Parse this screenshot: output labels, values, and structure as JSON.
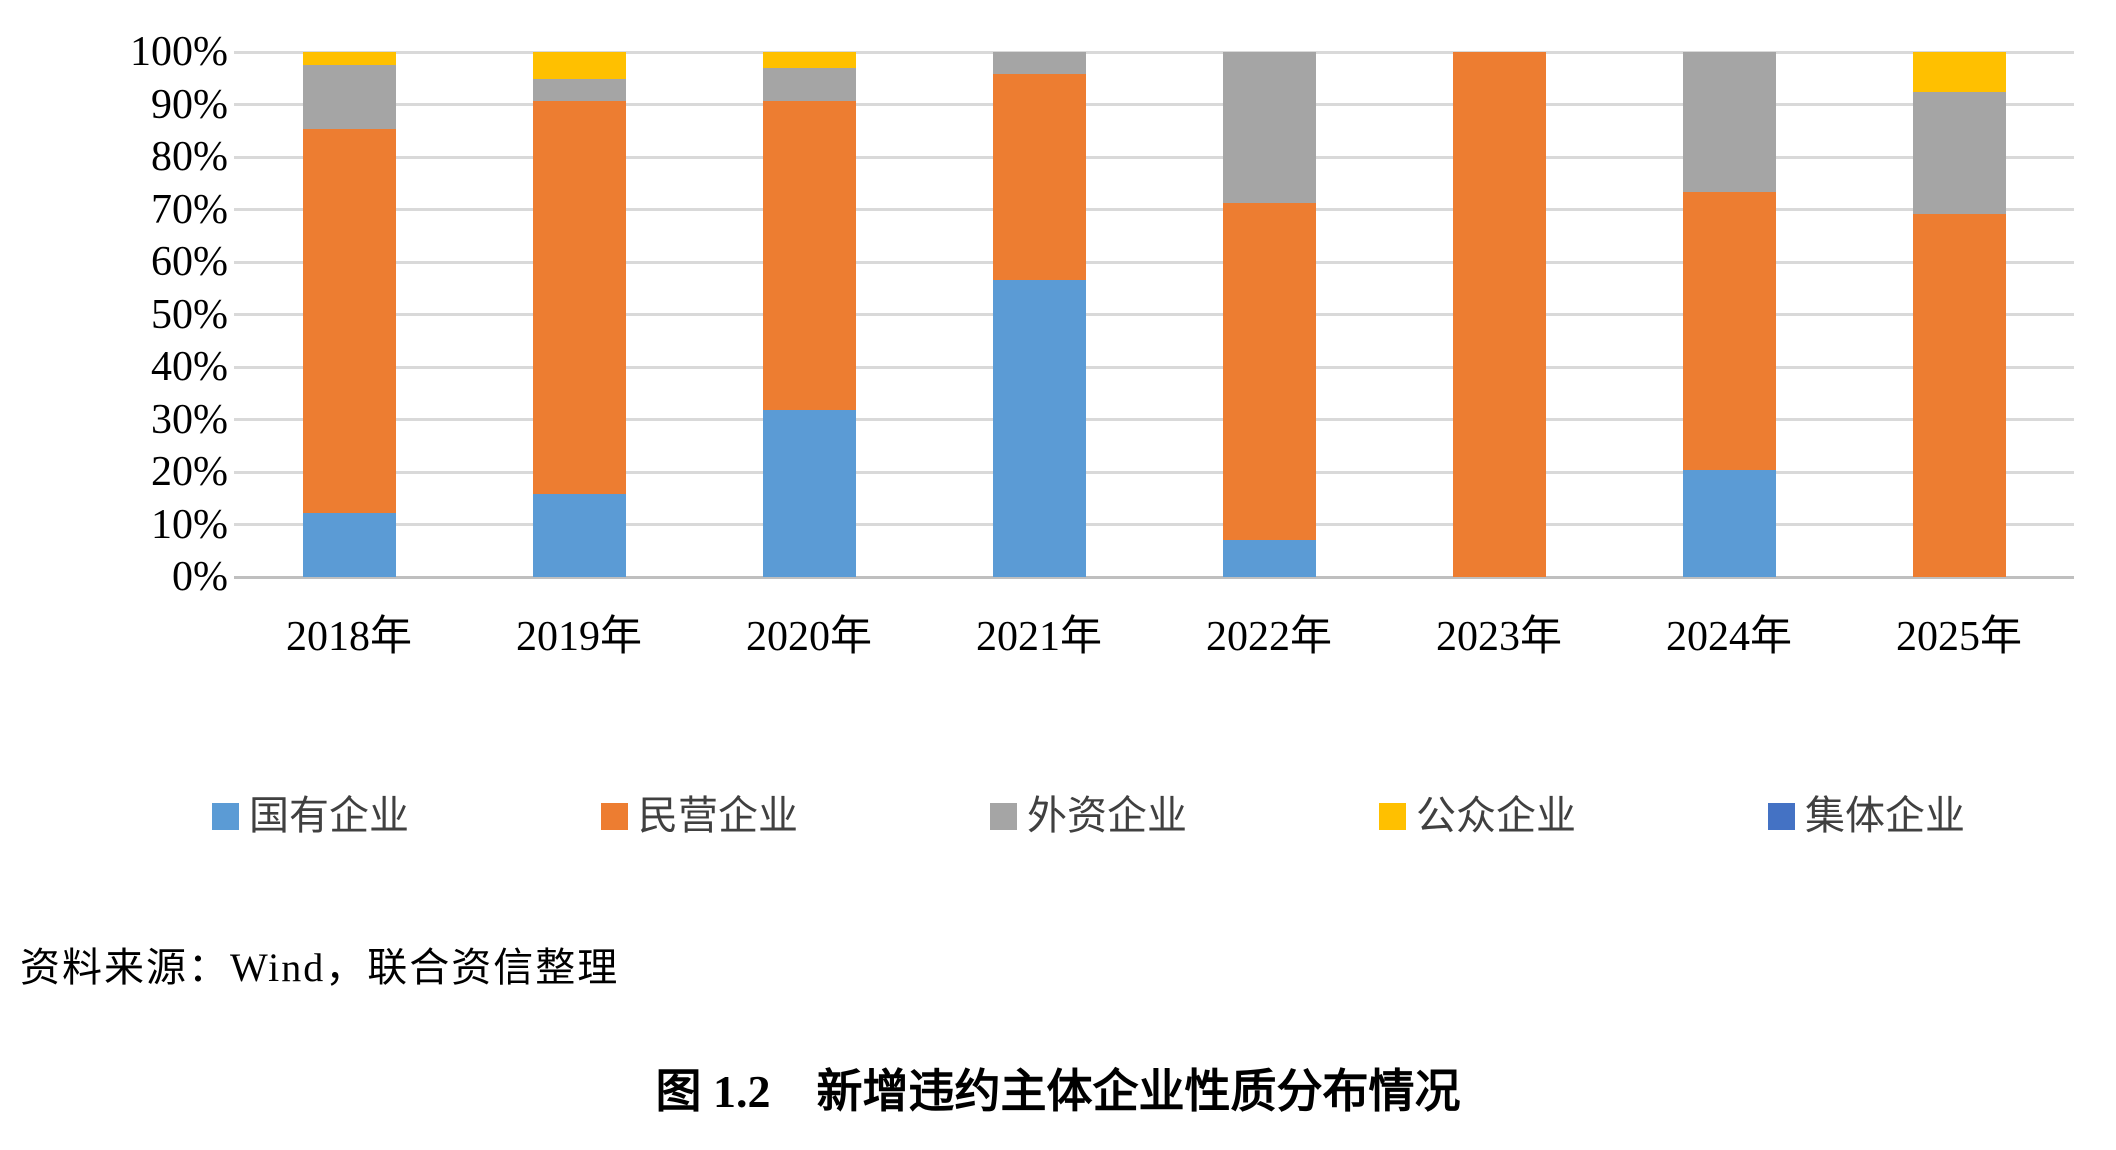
{
  "chart_data": {
    "type": "bar",
    "variant": "stacked-100-percent",
    "title": "",
    "categories": [
      "2018年",
      "2019年",
      "2020年",
      "2021年",
      "2022年",
      "2023年",
      "2024年",
      "2025年"
    ],
    "series": [
      {
        "name": "国有企业",
        "color": "#5B9BD5",
        "values": [
          12.2,
          15.8,
          31.9,
          56.5,
          7.1,
          0,
          20.3,
          0
        ]
      },
      {
        "name": "民营企业",
        "color": "#ED7D31",
        "values": [
          73.2,
          74.9,
          58.8,
          39.3,
          64.2,
          100,
          53.1,
          69.2
        ]
      },
      {
        "name": "外资企业",
        "color": "#A5A5A5",
        "values": [
          12.2,
          4.1,
          6.2,
          4.2,
          28.7,
          0,
          26.6,
          23.1
        ]
      },
      {
        "name": "公众企业",
        "color": "#FFC000",
        "values": [
          2.4,
          5.2,
          3.1,
          0,
          0,
          0,
          0,
          7.7
        ]
      },
      {
        "name": "集体企业",
        "color": "#4472C4",
        "values": [
          0,
          0,
          0,
          0,
          0,
          0,
          0,
          0
        ]
      }
    ],
    "y_axis": {
      "min": 0,
      "max": 100,
      "tick_step": 10,
      "tick_labels": [
        "0%",
        "10%",
        "20%",
        "30%",
        "40%",
        "50%",
        "60%",
        "70%",
        "80%",
        "90%",
        "100%"
      ]
    },
    "grid": true,
    "legend_position": "bottom"
  },
  "source_note": "资料来源：Wind，联合资信整理",
  "caption": "图 1.2　新增违约主体企业性质分布情况",
  "colors": {
    "background": "#FFFFFF",
    "text": "#000000",
    "gridline": "#D9D9D9",
    "axis_line": "#BFBFBF"
  }
}
